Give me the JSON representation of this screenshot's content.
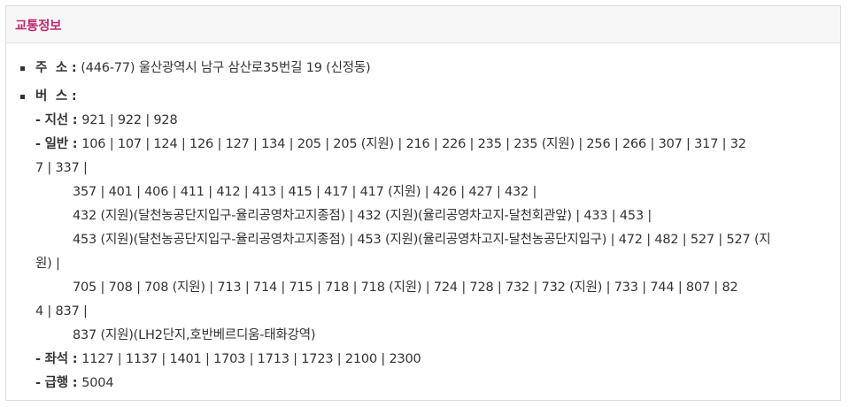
{
  "header": {
    "title": "교통정보"
  },
  "address": {
    "label": "주  소",
    "colon": " : ",
    "value": "(446-77) 울산광역시 남구 삼산로35번길 19 (신정동)"
  },
  "bus": {
    "label": "버  스",
    "colon": " : ",
    "branch": {
      "label": "- 지선 : ",
      "text": "921 | 922 | 928"
    },
    "general": {
      "label": "- 일반 : ",
      "line1": "106 | 107 | 124 | 126 | 127 | 134 | 205 | 205 (지원) | 216 | 226 | 235 | 235 (지원) | 256 | 266 | 307 | 317 | 32",
      "line2": "7 | 337 |",
      "line3": "357 | 401 | 406 | 411 | 412 | 413 | 415 | 417 | 417 (지원) | 426 | 427 | 432 |",
      "line4": "432 (지원)(달천농공단지입구-율리공영차고지종점) | 432 (지원)(율리공영차고지-달천회관앞) | 433 | 453 |",
      "line5": "453 (지원)(달천농공단지입구-율리공영차고지종점) | 453 (지원)(율리공영차고지-달천농공단지입구) | 472 | 482 | 527 | 527 (지",
      "line6": "원) |",
      "line7": "705 | 708 | 708 (지원) | 713 | 714 | 715 | 718 | 718 (지원) | 724 | 728 | 732 | 732 (지원) | 733 | 744 | 807 | 82",
      "line8": "4 | 837 |",
      "line9": "837 (지원)(LH2단지,호반베르디움-태화강역)"
    },
    "seat": {
      "label": "- 좌석 : ",
      "text": "1127 | 1137 | 1401 | 1703 | 1713 | 1723 | 2100 | 2300"
    },
    "express": {
      "label": "- 급행 : ",
      "text": "5004"
    }
  }
}
